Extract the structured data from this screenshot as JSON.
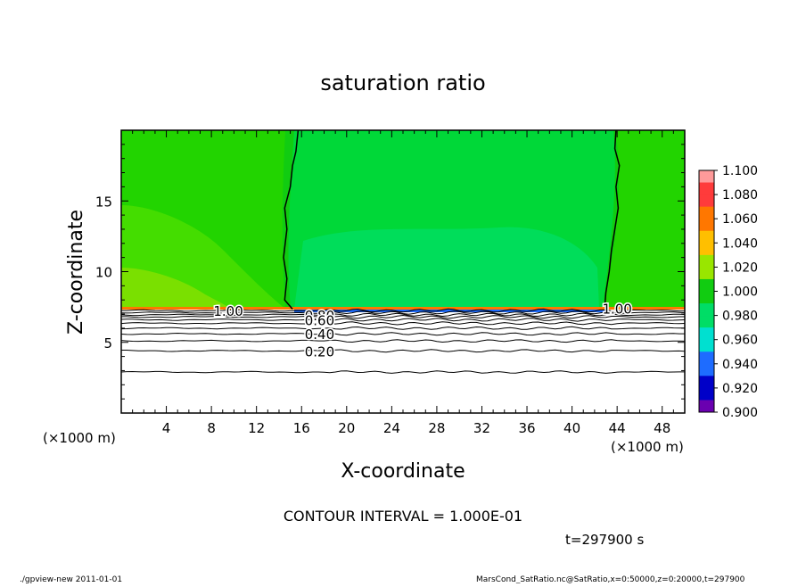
{
  "chart_data": {
    "type": "heatmap",
    "title": "saturation ratio",
    "xlabel": "X-coordinate",
    "ylabel": "Z-coordinate",
    "x_unit_label": "(×1000 m)",
    "x_unit_label_right": "(×1000 m)",
    "xlim": [
      0,
      50
    ],
    "ylim": [
      0,
      20
    ],
    "x_ticks": [
      4,
      8,
      12,
      16,
      20,
      24,
      28,
      32,
      36,
      40,
      44,
      48
    ],
    "y_ticks": [
      5,
      10,
      15
    ],
    "colorbar": {
      "levels": [
        "1.100",
        "1.080",
        "1.060",
        "1.040",
        "1.020",
        "1.000",
        "0.980",
        "0.960",
        "0.940",
        "0.920",
        "0.900"
      ],
      "colors": [
        "#ff9a9a",
        "#ff3b3b",
        "#ff7700",
        "#ffbf00",
        "#99e600",
        "#11cc11",
        "#00dd66",
        "#00e0d0",
        "#1e6cff",
        "#0000c8",
        "#6a00b0"
      ]
    },
    "contour_labels": [
      {
        "text": "1.00",
        "x": 9.5,
        "z": 7.25
      },
      {
        "text": "1.00",
        "x": 44.0,
        "z": 7.4
      },
      {
        "text": "0.80",
        "x": 17.6,
        "z": 6.95
      },
      {
        "text": "0.60",
        "x": 17.6,
        "z": 6.6
      },
      {
        "text": "0.40",
        "x": 17.6,
        "z": 5.6
      },
      {
        "text": "0.20",
        "x": 17.6,
        "z": 4.4
      }
    ],
    "contour_interval_text": "CONTOUR INTERVAL = 1.000E-01",
    "time_text": "t=297900 s",
    "footer_left": "./gpview-new   2011-01-01",
    "footer_right": "MarsCond_SatRatio.nc@SatRatio,x=0:50000,z=0:20000,t=297900"
  }
}
